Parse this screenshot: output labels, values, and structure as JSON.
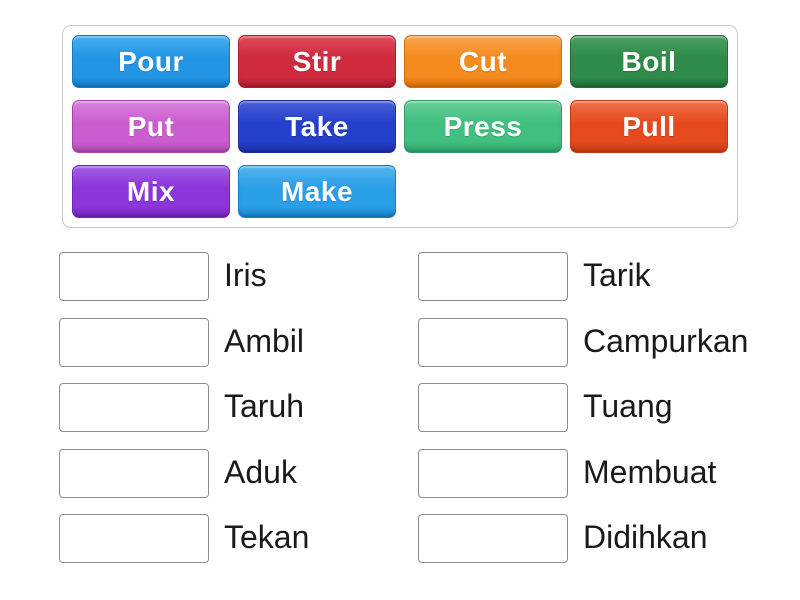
{
  "board": {
    "tiles": [
      {
        "label": "Pour",
        "color": "#2296e5",
        "color_light": "#47aef0",
        "color_dark": "#1478c2"
      },
      {
        "label": "Stir",
        "color": "#d02a3e",
        "color_light": "#e04b5d",
        "color_dark": "#ab1b2c"
      },
      {
        "label": "Cut",
        "color": "#f58a1e",
        "color_light": "#f8a54c",
        "color_dark": "#d66f08"
      },
      {
        "label": "Boil",
        "color": "#2e8b49",
        "color_light": "#4aa163",
        "color_dark": "#206b37"
      },
      {
        "label": "Put",
        "color": "#ca5ecf",
        "color_light": "#d983dc",
        "color_dark": "#a944ae"
      },
      {
        "label": "Take",
        "color": "#2440ca",
        "color_light": "#4a5fd8",
        "color_dark": "#1a2fa2"
      },
      {
        "label": "Press",
        "color": "#41bf80",
        "color_light": "#67cf9a",
        "color_dark": "#2f9d66"
      },
      {
        "label": "Pull",
        "color": "#e54a1e",
        "color_light": "#ee714a",
        "color_dark": "#c03a12"
      },
      {
        "label": "Mix",
        "color": "#8b35da",
        "color_light": "#a35fe6",
        "color_dark": "#7124b6"
      },
      {
        "label": "Make",
        "color": "#2b9ee8",
        "color_light": "#52b5ef",
        "color_dark": "#167fc4"
      }
    ]
  },
  "matches": {
    "left": [
      "Iris",
      "Ambil",
      "Taruh",
      "Aduk",
      "Tekan"
    ],
    "right": [
      "Tarik",
      "Campurkan",
      "Tuang",
      "Membuat",
      "Didihkan"
    ]
  }
}
